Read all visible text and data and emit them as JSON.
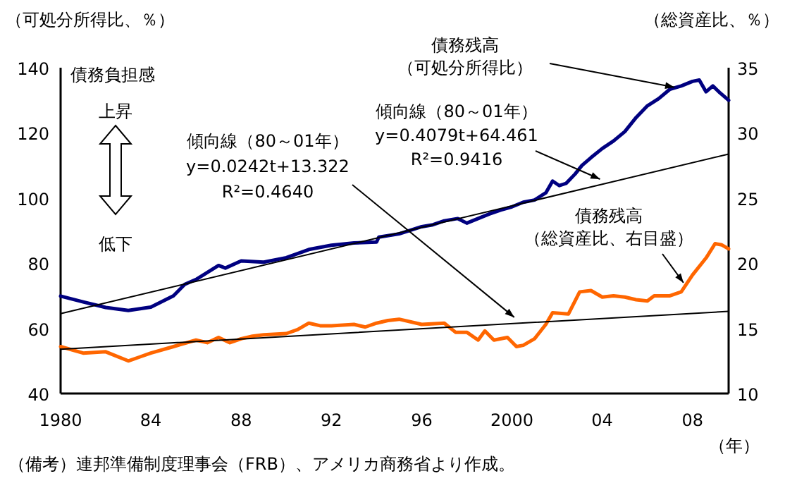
{
  "chart_data": {
    "type": "line",
    "xlabel": "（年）",
    "ylabel": "（可処分所得比、％）",
    "y2label": "（総資産比、％）",
    "xlim": [
      1980,
      2009.6
    ],
    "xticks": [
      {
        "value": 1980,
        "label": "1980"
      },
      {
        "value": 1984,
        "label": "84"
      },
      {
        "value": 1988,
        "label": "88"
      },
      {
        "value": 1992,
        "label": "92"
      },
      {
        "value": 1996,
        "label": "96"
      },
      {
        "value": 2000,
        "label": "2000"
      },
      {
        "value": 2004,
        "label": "04"
      },
      {
        "value": 2008,
        "label": "08"
      }
    ],
    "ylim": [
      40,
      140
    ],
    "yticks": [
      40,
      60,
      80,
      100,
      120,
      140
    ],
    "y2lim": [
      10,
      35
    ],
    "y2ticks": [
      10,
      15,
      20,
      25,
      30,
      35
    ],
    "series": [
      {
        "color": "#000080",
        "x": [
          1980,
          1981,
          1982,
          1983,
          1984,
          1985,
          1985.5,
          1986,
          1987,
          1987.3,
          1988,
          1989,
          1990,
          1991,
          1992,
          1993,
          1994,
          1994.1,
          1995,
          1996,
          1996.5,
          1997,
          1997.6,
          1998,
          1998.5,
          1999,
          1999.5,
          2000,
          2000.5,
          2001,
          2001.5,
          2001.8,
          2002.1,
          2002.4,
          2002.8,
          2003.1,
          2003.5,
          2004,
          2004.5,
          2005,
          2005.5,
          2006,
          2006.5,
          2007,
          2007.5,
          2008,
          2008.3,
          2008.6,
          2008.9,
          2009.2,
          2009.6
        ],
        "values": [
          69.9,
          68.1,
          66.4,
          65.5,
          66.5,
          70,
          73.5,
          75,
          79.3,
          78.5,
          80.7,
          80.3,
          81.7,
          84.2,
          85.5,
          86.2,
          86.5,
          88,
          89,
          91.2,
          91.8,
          93,
          93.7,
          92.3,
          93.7,
          95.1,
          96.3,
          97.3,
          98.7,
          99.4,
          101.6,
          105.2,
          103.8,
          104.5,
          107.4,
          110,
          112.4,
          115.2,
          117.5,
          120.4,
          124.7,
          128.3,
          130.5,
          133.4,
          134.4,
          135.8,
          136.2,
          132.6,
          134.4,
          132.4,
          130
        ]
      },
      {
        "color": "#ff6600",
        "axis": "y2",
        "x": [
          1980,
          1981,
          1982,
          1983,
          1983.5,
          1984,
          1985,
          1986,
          1986.5,
          1987,
          1987.5,
          1988,
          1988.5,
          1989,
          1990,
          1990.5,
          1991,
          1991.5,
          1992,
          1993,
          1993.5,
          1994,
          1994.5,
          1995,
          1996,
          1997,
          1997.5,
          1998,
          1998.5,
          1998.8,
          1999.2,
          1999.8,
          2000.2,
          2000.5,
          2001,
          2001.5,
          2001.8,
          2002.5,
          2003,
          2003.5,
          2004,
          2004.5,
          2005,
          2005.5,
          2006,
          2006.3,
          2007,
          2007.5,
          2008,
          2008.6,
          2009,
          2009.3,
          2009.6
        ],
        "values": [
          13.6,
          13.1,
          13.2,
          12.5,
          12.8,
          13.1,
          13.6,
          14.1,
          13.9,
          14.3,
          13.9,
          14.2,
          14.4,
          14.5,
          14.6,
          14.9,
          15.4,
          15.2,
          15.2,
          15.3,
          15.1,
          15.4,
          15.6,
          15.7,
          15.3,
          15.4,
          14.7,
          14.7,
          14.1,
          14.8,
          14.1,
          14.3,
          13.6,
          13.7,
          14.2,
          15.3,
          16.2,
          16.1,
          17.8,
          17.9,
          17.4,
          17.5,
          17.4,
          17.2,
          17.1,
          17.5,
          17.5,
          17.8,
          19.1,
          20.4,
          21.5,
          21.4,
          21.1
        ]
      },
      {
        "color": "#000000",
        "x": [
          1980,
          2009.6
        ],
        "values": [
          64.5,
          113.5
        ]
      },
      {
        "color": "#000000",
        "axis": "y2",
        "x": [
          1980,
          2009.6
        ],
        "values": [
          13.4,
          16.3
        ]
      }
    ],
    "annotations": [
      {
        "text": "債務残高（可処分所得比）",
        "x": 2007.2,
        "y": 134
      },
      {
        "text": "傾向線（80～01年）\ny=0.4079t+64.461\nR²=0.9416",
        "x": 2003.9,
        "y": 105.8
      },
      {
        "text": "傾向線（80～01年）\ny=0.0242t+13.322\nR²=0.4640",
        "x": 2000.1,
        "y": 63.4
      },
      {
        "text": "債務残高（総資産比、右目盛）",
        "x": 2007.6,
        "y": 74
      },
      "債務負担感",
      "上昇",
      "低下",
      "（備考）連邦準備制度理事会（FRB）、アメリカ商務省より作成。"
    ]
  }
}
